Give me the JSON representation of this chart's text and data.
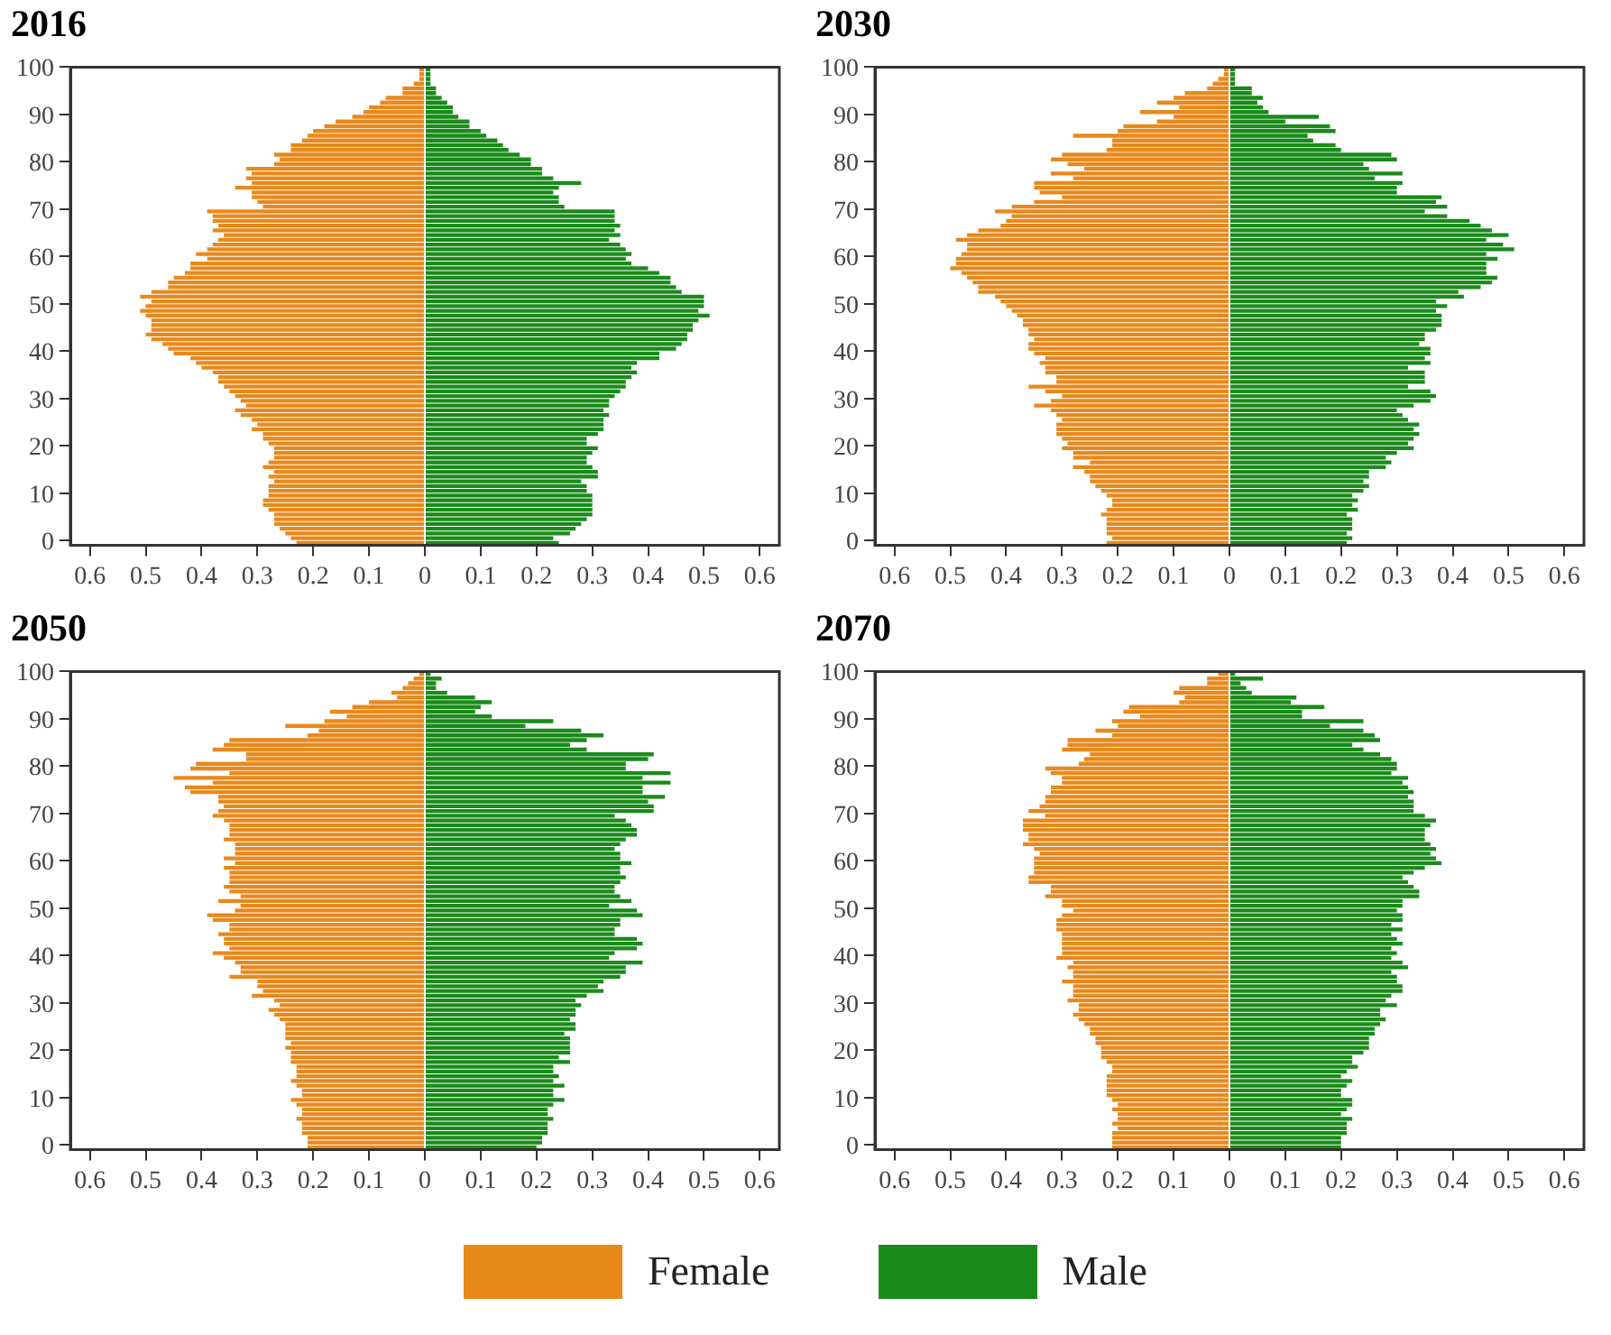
{
  "chart_data": [
    {
      "type": "bar",
      "title": "2016",
      "orientation": "horizontal",
      "stacked": true,
      "grid": false,
      "legend": "bottom",
      "categories": [
        "100",
        null,
        null,
        null,
        null,
        null,
        null,
        null,
        null,
        null,
        "90",
        null,
        null,
        null,
        null,
        null,
        null,
        null,
        null,
        null,
        "80",
        null,
        null,
        null,
        null,
        null,
        null,
        null,
        null,
        null,
        "70",
        null,
        null,
        null,
        null,
        null,
        null,
        null,
        null,
        null,
        "60",
        null,
        null,
        null,
        null,
        null,
        null,
        null,
        null,
        null,
        "50",
        null,
        null,
        null,
        null,
        null,
        null,
        null,
        null,
        null,
        "40",
        null,
        null,
        null,
        null,
        null,
        null,
        null,
        null,
        null,
        "30",
        null,
        null,
        null,
        null,
        null,
        null,
        null,
        null,
        null,
        "20",
        null,
        null,
        null,
        null,
        null,
        null,
        null,
        null,
        null,
        "10",
        null,
        null,
        null,
        null,
        null,
        null,
        null,
        null,
        null,
        "0"
      ],
      "xlim": [
        -0.635,
        0.635
      ],
      "xticks": [
        {
          "value": -0.6,
          "label": "0.6"
        },
        {
          "value": -0.5,
          "label": "0.5"
        },
        {
          "value": -0.4,
          "label": "0.4"
        },
        {
          "value": -0.3,
          "label": "0.3"
        },
        {
          "value": -0.2,
          "label": "0.2"
        },
        {
          "value": -0.1,
          "label": "0.1"
        },
        0,
        0.1,
        0.2,
        0.3,
        0.4,
        0.5,
        0.6
      ],
      "series": [
        {
          "name": "Female",
          "color": "#e8891c",
          "values": [
            -0.01,
            -0.01,
            -0.01,
            -0.02,
            -0.04,
            -0.04,
            -0.07,
            -0.08,
            -0.1,
            -0.11,
            -0.13,
            -0.16,
            -0.18,
            -0.2,
            -0.21,
            -0.22,
            -0.24,
            -0.24,
            -0.27,
            -0.26,
            -0.27,
            -0.32,
            -0.31,
            -0.32,
            -0.31,
            -0.34,
            -0.31,
            -0.31,
            -0.3,
            -0.29,
            -0.39,
            -0.38,
            -0.38,
            -0.37,
            -0.38,
            -0.36,
            -0.37,
            -0.38,
            -0.39,
            -0.41,
            -0.39,
            -0.42,
            -0.42,
            -0.43,
            -0.45,
            -0.46,
            -0.46,
            -0.49,
            -0.51,
            -0.49,
            -0.5,
            -0.51,
            -0.5,
            -0.49,
            -0.49,
            -0.49,
            -0.5,
            -0.49,
            -0.47,
            -0.46,
            -0.45,
            -0.42,
            -0.41,
            -0.4,
            -0.38,
            -0.37,
            -0.37,
            -0.36,
            -0.35,
            -0.34,
            -0.33,
            -0.32,
            -0.34,
            -0.33,
            -0.31,
            -0.3,
            -0.31,
            -0.29,
            -0.29,
            -0.28,
            -0.27,
            -0.27,
            -0.27,
            -0.28,
            -0.29,
            -0.27,
            -0.28,
            -0.27,
            -0.28,
            -0.28,
            -0.28,
            -0.29,
            -0.29,
            -0.28,
            -0.27,
            -0.27,
            -0.27,
            -0.26,
            -0.25,
            -0.24,
            -0.23
          ]
        },
        {
          "name": "Male",
          "color": "#1a8a1a",
          "values": [
            0.01,
            0.01,
            0.01,
            0.01,
            0.02,
            0.02,
            0.03,
            0.04,
            0.05,
            0.05,
            0.06,
            0.08,
            0.08,
            0.1,
            0.11,
            0.13,
            0.14,
            0.15,
            0.17,
            0.19,
            0.19,
            0.21,
            0.21,
            0.23,
            0.28,
            0.24,
            0.23,
            0.24,
            0.24,
            0.25,
            0.34,
            0.34,
            0.34,
            0.35,
            0.34,
            0.35,
            0.33,
            0.35,
            0.36,
            0.37,
            0.36,
            0.37,
            0.4,
            0.42,
            0.44,
            0.44,
            0.45,
            0.46,
            0.5,
            0.5,
            0.5,
            0.49,
            0.51,
            0.49,
            0.48,
            0.48,
            0.47,
            0.47,
            0.46,
            0.45,
            0.42,
            0.42,
            0.38,
            0.37,
            0.38,
            0.37,
            0.36,
            0.36,
            0.35,
            0.34,
            0.33,
            0.33,
            0.32,
            0.33,
            0.32,
            0.32,
            0.32,
            0.31,
            0.29,
            0.29,
            0.31,
            0.3,
            0.29,
            0.29,
            0.3,
            0.31,
            0.31,
            0.28,
            0.29,
            0.29,
            0.3,
            0.3,
            0.3,
            0.3,
            0.3,
            0.29,
            0.28,
            0.27,
            0.26,
            0.23,
            0.24
          ]
        }
      ]
    },
    {
      "type": "bar",
      "title": "2030",
      "orientation": "horizontal",
      "stacked": true,
      "grid": false,
      "categories": [
        "100",
        null,
        null,
        null,
        null,
        null,
        null,
        null,
        null,
        null,
        "90",
        null,
        null,
        null,
        null,
        null,
        null,
        null,
        null,
        null,
        "80",
        null,
        null,
        null,
        null,
        null,
        null,
        null,
        null,
        null,
        "70",
        null,
        null,
        null,
        null,
        null,
        null,
        null,
        null,
        null,
        "60",
        null,
        null,
        null,
        null,
        null,
        null,
        null,
        null,
        null,
        "50",
        null,
        null,
        null,
        null,
        null,
        null,
        null,
        null,
        null,
        "40",
        null,
        null,
        null,
        null,
        null,
        null,
        null,
        null,
        null,
        "30",
        null,
        null,
        null,
        null,
        null,
        null,
        null,
        null,
        null,
        "20",
        null,
        null,
        null,
        null,
        null,
        null,
        null,
        null,
        null,
        "10",
        null,
        null,
        null,
        null,
        null,
        null,
        null,
        null,
        null,
        "0"
      ],
      "xlim": [
        -0.635,
        0.635
      ],
      "xticks": [
        {
          "value": -0.6,
          "label": "0.6"
        },
        {
          "value": -0.5,
          "label": "0.5"
        },
        {
          "value": -0.4,
          "label": "0.4"
        },
        {
          "value": -0.3,
          "label": "0.3"
        },
        {
          "value": -0.2,
          "label": "0.2"
        },
        {
          "value": -0.1,
          "label": "0.1"
        },
        0,
        0.1,
        0.2,
        0.3,
        0.4,
        0.5,
        0.6
      ],
      "series": [
        {
          "color": "#e8891c",
          "values": [
            -0.01,
            -0.01,
            -0.02,
            -0.03,
            -0.04,
            -0.08,
            -0.1,
            -0.13,
            -0.09,
            -0.16,
            -0.1,
            -0.13,
            -0.19,
            -0.2,
            -0.28,
            -0.21,
            -0.21,
            -0.22,
            -0.3,
            -0.32,
            -0.29,
            -0.26,
            -0.32,
            -0.28,
            -0.35,
            -0.35,
            -0.34,
            -0.3,
            -0.35,
            -0.39,
            -0.42,
            -0.39,
            -0.4,
            -0.41,
            -0.45,
            -0.47,
            -0.49,
            -0.47,
            -0.47,
            -0.48,
            -0.49,
            -0.49,
            -0.5,
            -0.48,
            -0.47,
            -0.46,
            -0.45,
            -0.45,
            -0.42,
            -0.41,
            -0.4,
            -0.39,
            -0.38,
            -0.37,
            -0.37,
            -0.36,
            -0.36,
            -0.35,
            -0.36,
            -0.36,
            -0.35,
            -0.33,
            -0.34,
            -0.33,
            -0.33,
            -0.31,
            -0.31,
            -0.36,
            -0.33,
            -0.3,
            -0.32,
            -0.35,
            -0.32,
            -0.31,
            -0.3,
            -0.31,
            -0.31,
            -0.31,
            -0.3,
            -0.29,
            -0.3,
            -0.28,
            -0.28,
            -0.25,
            -0.28,
            -0.26,
            -0.25,
            -0.25,
            -0.24,
            -0.23,
            -0.22,
            -0.21,
            -0.21,
            -0.22,
            -0.23,
            -0.22,
            -0.22,
            -0.22,
            -0.22,
            -0.21,
            -0.22
          ]
        },
        {
          "color": "#1a8a1a",
          "values": [
            0.01,
            0.01,
            0.01,
            0.01,
            0.04,
            0.04,
            0.06,
            0.05,
            0.06,
            0.07,
            0.16,
            0.1,
            0.18,
            0.19,
            0.14,
            0.15,
            0.19,
            0.2,
            0.29,
            0.3,
            0.24,
            0.25,
            0.31,
            0.26,
            0.31,
            0.3,
            0.3,
            0.38,
            0.37,
            0.39,
            0.35,
            0.39,
            0.43,
            0.45,
            0.47,
            0.5,
            0.46,
            0.49,
            0.51,
            0.46,
            0.48,
            0.46,
            0.46,
            0.46,
            0.48,
            0.47,
            0.45,
            0.41,
            0.42,
            0.37,
            0.39,
            0.37,
            0.38,
            0.38,
            0.38,
            0.37,
            0.35,
            0.35,
            0.34,
            0.36,
            0.36,
            0.35,
            0.36,
            0.32,
            0.35,
            0.35,
            0.35,
            0.32,
            0.36,
            0.37,
            0.36,
            0.33,
            0.3,
            0.31,
            0.32,
            0.34,
            0.33,
            0.34,
            0.33,
            0.32,
            0.33,
            0.3,
            0.28,
            0.29,
            0.28,
            0.25,
            0.25,
            0.24,
            0.25,
            0.24,
            0.22,
            0.23,
            0.22,
            0.23,
            0.21,
            0.22,
            0.22,
            0.22,
            0.21,
            0.22,
            0.21
          ]
        }
      ]
    },
    {
      "type": "bar",
      "title": "2050",
      "orientation": "horizontal",
      "stacked": true,
      "grid": false,
      "categories": [
        "100",
        null,
        null,
        null,
        null,
        null,
        null,
        null,
        null,
        null,
        "90",
        null,
        null,
        null,
        null,
        null,
        null,
        null,
        null,
        null,
        "80",
        null,
        null,
        null,
        null,
        null,
        null,
        null,
        null,
        null,
        "70",
        null,
        null,
        null,
        null,
        null,
        null,
        null,
        null,
        null,
        "60",
        null,
        null,
        null,
        null,
        null,
        null,
        null,
        null,
        null,
        "50",
        null,
        null,
        null,
        null,
        null,
        null,
        null,
        null,
        null,
        "40",
        null,
        null,
        null,
        null,
        null,
        null,
        null,
        null,
        null,
        "30",
        null,
        null,
        null,
        null,
        null,
        null,
        null,
        null,
        null,
        "20",
        null,
        null,
        null,
        null,
        null,
        null,
        null,
        null,
        null,
        "10",
        null,
        null,
        null,
        null,
        null,
        null,
        null,
        null,
        null,
        "0"
      ],
      "xlim": [
        -0.635,
        0.635
      ],
      "xticks": [
        {
          "value": -0.6,
          "label": "0.6"
        },
        {
          "value": -0.5,
          "label": "0.5"
        },
        {
          "value": -0.4,
          "label": "0.4"
        },
        {
          "value": -0.3,
          "label": "0.3"
        },
        {
          "value": -0.2,
          "label": "0.2"
        },
        {
          "value": -0.1,
          "label": "0.1"
        },
        0,
        0.1,
        0.2,
        0.3,
        0.4,
        0.5,
        0.6
      ],
      "series": [
        {
          "color": "#e8891c",
          "values": [
            -0.01,
            -0.02,
            -0.03,
            -0.04,
            -0.06,
            -0.05,
            -0.1,
            -0.13,
            -0.17,
            -0.14,
            -0.18,
            -0.25,
            -0.19,
            -0.21,
            -0.35,
            -0.36,
            -0.38,
            -0.32,
            -0.32,
            -0.41,
            -0.42,
            -0.35,
            -0.45,
            -0.38,
            -0.43,
            -0.42,
            -0.37,
            -0.37,
            -0.36,
            -0.37,
            -0.38,
            -0.36,
            -0.35,
            -0.35,
            -0.35,
            -0.36,
            -0.34,
            -0.34,
            -0.34,
            -0.36,
            -0.34,
            -0.36,
            -0.35,
            -0.35,
            -0.35,
            -0.36,
            -0.35,
            -0.33,
            -0.37,
            -0.33,
            -0.34,
            -0.39,
            -0.38,
            -0.35,
            -0.35,
            -0.37,
            -0.36,
            -0.36,
            -0.35,
            -0.38,
            -0.36,
            -0.34,
            -0.33,
            -0.33,
            -0.35,
            -0.3,
            -0.3,
            -0.29,
            -0.31,
            -0.27,
            -0.26,
            -0.28,
            -0.27,
            -0.26,
            -0.25,
            -0.25,
            -0.25,
            -0.25,
            -0.24,
            -0.25,
            -0.24,
            -0.24,
            -0.24,
            -0.23,
            -0.23,
            -0.23,
            -0.24,
            -0.23,
            -0.22,
            -0.22,
            -0.24,
            -0.23,
            -0.22,
            -0.22,
            -0.23,
            -0.22,
            -0.22,
            -0.22,
            -0.21,
            -0.21,
            -0.21
          ]
        },
        {
          "color": "#1a8a1a",
          "values": [
            0.01,
            0.03,
            0.02,
            0.02,
            0.04,
            0.09,
            0.12,
            0.1,
            0.09,
            0.12,
            0.23,
            0.18,
            0.28,
            0.32,
            0.29,
            0.26,
            0.29,
            0.41,
            0.4,
            0.36,
            0.36,
            0.44,
            0.39,
            0.44,
            0.39,
            0.39,
            0.43,
            0.4,
            0.41,
            0.41,
            0.34,
            0.36,
            0.37,
            0.38,
            0.38,
            0.36,
            0.35,
            0.34,
            0.35,
            0.35,
            0.37,
            0.35,
            0.35,
            0.36,
            0.35,
            0.34,
            0.34,
            0.35,
            0.37,
            0.33,
            0.38,
            0.39,
            0.35,
            0.35,
            0.34,
            0.34,
            0.38,
            0.39,
            0.38,
            0.34,
            0.33,
            0.39,
            0.36,
            0.36,
            0.35,
            0.32,
            0.31,
            0.32,
            0.29,
            0.27,
            0.28,
            0.27,
            0.27,
            0.26,
            0.27,
            0.27,
            0.25,
            0.26,
            0.26,
            0.26,
            0.26,
            0.24,
            0.26,
            0.23,
            0.23,
            0.24,
            0.23,
            0.25,
            0.23,
            0.23,
            0.25,
            0.23,
            0.22,
            0.22,
            0.23,
            0.22,
            0.22,
            0.22,
            0.21,
            0.21,
            0.2
          ]
        }
      ]
    },
    {
      "type": "bar",
      "title": "2070",
      "orientation": "horizontal",
      "stacked": true,
      "grid": false,
      "categories": [
        "100",
        null,
        null,
        null,
        null,
        null,
        null,
        null,
        null,
        null,
        "90",
        null,
        null,
        null,
        null,
        null,
        null,
        null,
        null,
        null,
        "80",
        null,
        null,
        null,
        null,
        null,
        null,
        null,
        null,
        null,
        "70",
        null,
        null,
        null,
        null,
        null,
        null,
        null,
        null,
        null,
        "60",
        null,
        null,
        null,
        null,
        null,
        null,
        null,
        null,
        null,
        "50",
        null,
        null,
        null,
        null,
        null,
        null,
        null,
        null,
        null,
        "40",
        null,
        null,
        null,
        null,
        null,
        null,
        null,
        null,
        null,
        "30",
        null,
        null,
        null,
        null,
        null,
        null,
        null,
        null,
        null,
        "20",
        null,
        null,
        null,
        null,
        null,
        null,
        null,
        null,
        null,
        "10",
        null,
        null,
        null,
        null,
        null,
        null,
        null,
        null,
        null,
        "0"
      ],
      "xlim": [
        -0.635,
        0.635
      ],
      "xticks": [
        {
          "value": -0.6,
          "label": "0.6"
        },
        {
          "value": -0.5,
          "label": "0.5"
        },
        {
          "value": -0.4,
          "label": "0.4"
        },
        {
          "value": -0.3,
          "label": "0.3"
        },
        {
          "value": -0.2,
          "label": "0.2"
        },
        {
          "value": -0.1,
          "label": "0.1"
        },
        0,
        0.1,
        0.2,
        0.3,
        0.4,
        0.5,
        0.6
      ],
      "series": [
        {
          "color": "#e8891c",
          "values": [
            -0.02,
            -0.04,
            -0.04,
            -0.09,
            -0.1,
            -0.08,
            -0.09,
            -0.18,
            -0.19,
            -0.16,
            -0.21,
            -0.2,
            -0.24,
            -0.21,
            -0.29,
            -0.29,
            -0.3,
            -0.25,
            -0.26,
            -0.27,
            -0.33,
            -0.32,
            -0.3,
            -0.3,
            -0.32,
            -0.32,
            -0.33,
            -0.33,
            -0.34,
            -0.36,
            -0.33,
            -0.37,
            -0.37,
            -0.37,
            -0.36,
            -0.36,
            -0.37,
            -0.35,
            -0.34,
            -0.35,
            -0.35,
            -0.35,
            -0.35,
            -0.36,
            -0.36,
            -0.32,
            -0.32,
            -0.33,
            -0.3,
            -0.3,
            -0.28,
            -0.3,
            -0.31,
            -0.31,
            -0.31,
            -0.3,
            -0.3,
            -0.3,
            -0.3,
            -0.3,
            -0.31,
            -0.28,
            -0.29,
            -0.28,
            -0.28,
            -0.3,
            -0.28,
            -0.28,
            -0.28,
            -0.29,
            -0.27,
            -0.27,
            -0.28,
            -0.27,
            -0.26,
            -0.25,
            -0.25,
            -0.24,
            -0.24,
            -0.23,
            -0.23,
            -0.23,
            -0.22,
            -0.21,
            -0.21,
            -0.22,
            -0.22,
            -0.22,
            -0.22,
            -0.22,
            -0.21,
            -0.2,
            -0.21,
            -0.2,
            -0.2,
            -0.21,
            -0.2,
            -0.21,
            -0.21,
            -0.21,
            -0.21
          ]
        },
        {
          "color": "#1a8a1a",
          "values": [
            0.01,
            0.06,
            0.02,
            0.03,
            0.04,
            0.12,
            0.11,
            0.17,
            0.13,
            0.13,
            0.24,
            0.18,
            0.24,
            0.26,
            0.27,
            0.22,
            0.24,
            0.27,
            0.29,
            0.3,
            0.3,
            0.29,
            0.32,
            0.31,
            0.32,
            0.33,
            0.32,
            0.33,
            0.33,
            0.33,
            0.35,
            0.37,
            0.36,
            0.35,
            0.35,
            0.35,
            0.36,
            0.37,
            0.36,
            0.37,
            0.38,
            0.35,
            0.33,
            0.31,
            0.32,
            0.33,
            0.34,
            0.34,
            0.31,
            0.31,
            0.3,
            0.31,
            0.31,
            0.29,
            0.31,
            0.29,
            0.3,
            0.31,
            0.29,
            0.3,
            0.29,
            0.31,
            0.32,
            0.29,
            0.3,
            0.3,
            0.31,
            0.31,
            0.29,
            0.28,
            0.3,
            0.27,
            0.27,
            0.28,
            0.27,
            0.26,
            0.26,
            0.25,
            0.25,
            0.25,
            0.24,
            0.22,
            0.22,
            0.23,
            0.21,
            0.2,
            0.22,
            0.21,
            0.2,
            0.2,
            0.22,
            0.22,
            0.21,
            0.2,
            0.22,
            0.21,
            0.21,
            0.21,
            0.2,
            0.2,
            0.2
          ]
        }
      ]
    }
  ]
}
